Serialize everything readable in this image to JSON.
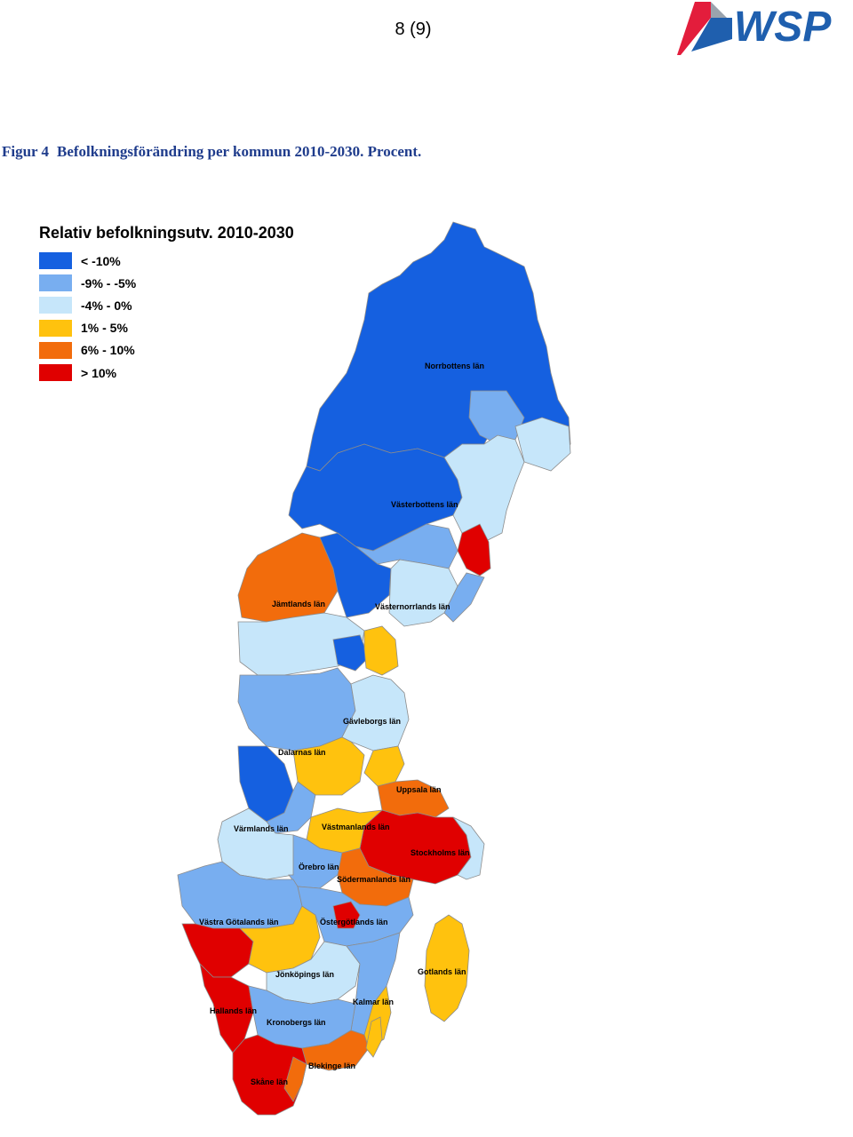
{
  "header": {
    "page_number": "8 (9)",
    "logo_text": "WSP"
  },
  "caption": {
    "label": "Figur 4",
    "text": "Befolkningsförändring per kommun 2010-2030. Procent."
  },
  "legend": {
    "title": "Relativ befolkningsutv. 2010-2030",
    "items": [
      {
        "label": "< -10%",
        "color": "#1560e0"
      },
      {
        "label": "-9% - -5%",
        "color": "#78aef0"
      },
      {
        "label": "-4% - 0%",
        "color": "#c6e6fa"
      },
      {
        "label": "1% - 5%",
        "color": "#ffc20e"
      },
      {
        "label": "6% - 10%",
        "color": "#f26c0c"
      },
      {
        "label": "> 10%",
        "color": "#e00000"
      }
    ]
  },
  "map": {
    "county_labels": [
      "Norrbottens län",
      "Västerbottens län",
      "Jämtlands län",
      "Västernorrlands län",
      "Gävleborgs län",
      "Dalarnas län",
      "Uppsala län",
      "Värmlands län",
      "Västmanlands län",
      "Stockholms län",
      "Örebro län",
      "Södermanlands län",
      "Västra Götalands län",
      "Östergötlands län",
      "Gotlands län",
      "Jönköpings län",
      "Kalmar län",
      "Hallands län",
      "Kronobergs län",
      "Blekinge län",
      "Skåne län"
    ]
  }
}
